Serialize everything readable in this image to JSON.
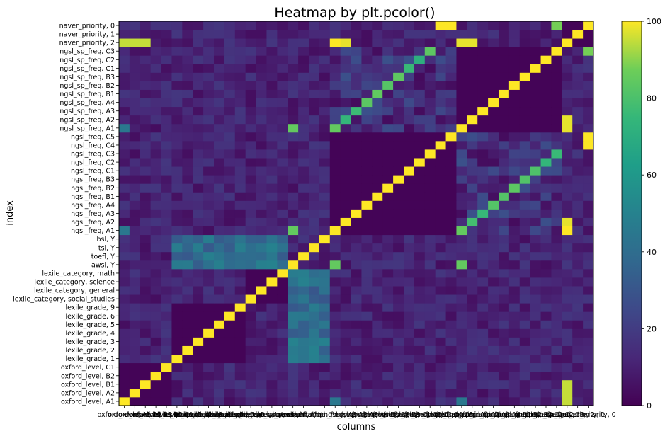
{
  "chart_data": {
    "type": "heatmap",
    "title": "Heatmap by plt.pcolor()",
    "xlabel": "columns",
    "ylabel": "index",
    "colormap": "viridis",
    "colorbar": {
      "min": 0,
      "max": 100,
      "ticks": [
        0,
        20,
        40,
        60,
        80,
        100
      ]
    },
    "labels": [
      "oxford_level, A1",
      "oxford_level, A2",
      "oxford_level, B1",
      "oxford_level, B2",
      "oxford_level, C1",
      "lexile_grade, 1",
      "lexile_grade, 2",
      "lexile_grade, 3",
      "lexile_grade, 4",
      "lexile_grade, 5",
      "lexile_grade, 6",
      "lexile_grade, 9",
      "lexile_category, social_studies",
      "lexile_category, general",
      "lexile_category, science",
      "lexile_category, math",
      "awsl, Y",
      "toefl, Y",
      "tsl, Y",
      "bsl, Y",
      "ngsl_freq, A1",
      "ngsl_freq, A2",
      "ngsl_freq, A3",
      "ngsl_freq, A4",
      "ngsl_freq, B1",
      "ngsl_freq, B2",
      "ngsl_freq, B3",
      "ngsl_freq, C1",
      "ngsl_freq, C2",
      "ngsl_freq, C3",
      "ngsl_freq, C4",
      "ngsl_freq, C5",
      "ngsl_sp_freq, A1",
      "ngsl_sp_freq, A2",
      "ngsl_sp_freq, A3",
      "ngsl_sp_freq, A4",
      "ngsl_sp_freq, B1",
      "ngsl_sp_freq, B2",
      "ngsl_sp_freq, B3",
      "ngsl_sp_freq, C1",
      "ngsl_sp_freq, C2",
      "ngsl_sp_freq, C3",
      "naver_priority, 2",
      "naver_priority, 1",
      "naver_priority, 0"
    ],
    "diagonal_value": 100,
    "notable_values": [
      {
        "row": "oxford_level, A1",
        "col": "ngsl_freq, A1",
        "value": 45
      },
      {
        "row": "oxford_level, A1",
        "col": "ngsl_sp_freq, A1",
        "value": 45
      },
      {
        "row": "oxford_level, A1",
        "col": "naver_priority, 2",
        "value": 95
      },
      {
        "row": "oxford_level, A2",
        "col": "naver_priority, 2",
        "value": 95
      },
      {
        "row": "oxford_level, B1",
        "col": "naver_priority, 2",
        "value": 95
      },
      {
        "row": "ngsl_freq, A1",
        "col": "naver_priority, 2",
        "value": 100
      },
      {
        "row": "ngsl_freq, A2",
        "col": "naver_priority, 2",
        "value": 98
      },
      {
        "row": "ngsl_sp_freq, A1",
        "col": "naver_priority, 2",
        "value": 98
      },
      {
        "row": "ngsl_sp_freq, A2",
        "col": "naver_priority, 2",
        "value": 98
      },
      {
        "row": "ngsl_freq, C4",
        "col": "naver_priority, 0",
        "value": 100
      },
      {
        "row": "ngsl_freq, C5",
        "col": "naver_priority, 0",
        "value": 100
      },
      {
        "row": "ngsl_sp_freq, C3",
        "col": "naver_priority, 0",
        "value": 88
      },
      {
        "row": "ngsl_sp_freq, A1",
        "col": "awsl, Y",
        "value": 85
      },
      {
        "row": "ngsl_freq, A1",
        "col": "awsl, Y",
        "value": 85
      },
      {
        "row": "ngsl_sp_freq, A1",
        "col": "ngsl_freq, A1",
        "value": 85
      },
      {
        "row": "ngsl_freq, A1",
        "col": "ngsl_sp_freq, A1",
        "value": 85
      }
    ]
  }
}
